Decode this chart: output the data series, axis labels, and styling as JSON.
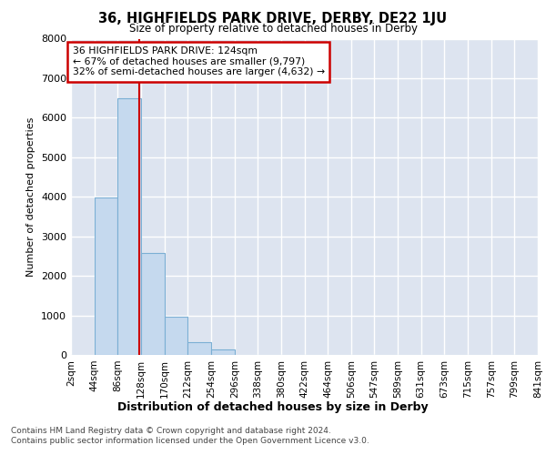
{
  "title": "36, HIGHFIELDS PARK DRIVE, DERBY, DE22 1JU",
  "subtitle": "Size of property relative to detached houses in Derby",
  "xlabel": "Distribution of detached houses by size in Derby",
  "ylabel": "Number of detached properties",
  "footnote1": "Contains HM Land Registry data © Crown copyright and database right 2024.",
  "footnote2": "Contains public sector information licensed under the Open Government Licence v3.0.",
  "bin_edges": [
    2,
    44,
    86,
    128,
    170,
    212,
    254,
    296,
    338,
    380,
    422,
    464,
    506,
    547,
    589,
    631,
    673,
    715,
    757,
    799,
    841
  ],
  "bar_heights": [
    0,
    3980,
    6490,
    2580,
    970,
    320,
    130,
    0,
    0,
    0,
    0,
    0,
    0,
    0,
    0,
    0,
    0,
    0,
    0,
    0
  ],
  "property_size": 124,
  "annotation_title": "36 HIGHFIELDS PARK DRIVE: 124sqm",
  "annotation_line1": "← 67% of detached houses are smaller (9,797)",
  "annotation_line2": "32% of semi-detached houses are larger (4,632) →",
  "bar_fill_color": "#c5d9ee",
  "bar_edge_color": "#7bafd4",
  "line_color": "#cc0000",
  "ann_box_edge_color": "#cc0000",
  "plot_bg_color": "#dde4f0",
  "fig_bg_color": "#ffffff",
  "grid_color": "#ffffff",
  "ylabel_color": "#000000",
  "ylim_max": 8000,
  "ytick_step": 1000
}
